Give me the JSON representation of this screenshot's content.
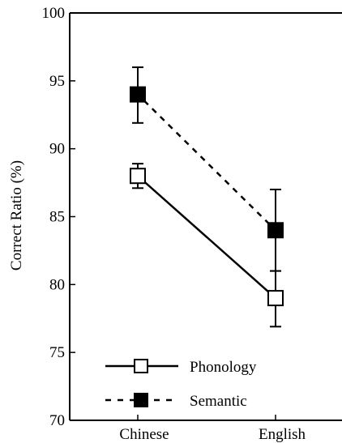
{
  "chart_data": {
    "type": "line",
    "title": "",
    "xlabel": "",
    "ylabel": "Correct Ratio (%)",
    "categories": [
      "Chinese",
      "English"
    ],
    "ylim": [
      70,
      100
    ],
    "yticks": [
      "70",
      "75",
      "80",
      "85",
      "90",
      "95",
      "100"
    ],
    "grid": false,
    "legend_position": "bottom-center",
    "series": [
      {
        "name": "Phonology",
        "values": [
          88,
          79
        ],
        "error_low": [
          87.1,
          76.9
        ],
        "error_high": [
          88.9,
          81.0
        ],
        "marker": "open-square",
        "line_style": "solid",
        "color": "#000000"
      },
      {
        "name": "Semantic",
        "values": [
          94,
          84
        ],
        "error_low": [
          91.9,
          81.0
        ],
        "error_high": [
          96.0,
          87.0
        ],
        "marker": "filled-square",
        "line_style": "dashed",
        "color": "#000000"
      }
    ]
  }
}
